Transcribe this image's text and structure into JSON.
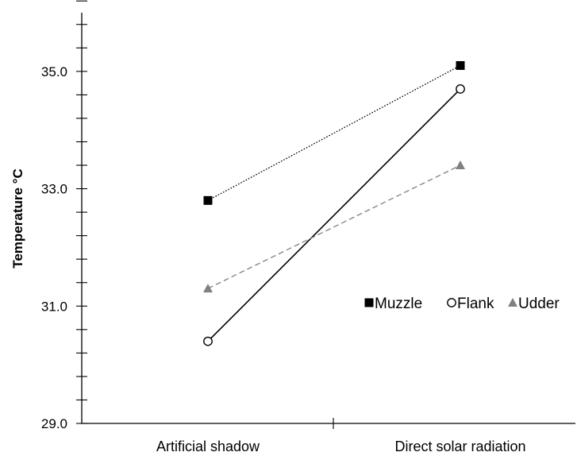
{
  "chart_data": {
    "type": "line",
    "title": "",
    "xlabel": "",
    "ylabel": "Temperature °C",
    "categories": [
      "Artificial shadow",
      "Direct solar radiation"
    ],
    "ylim": [
      29.0,
      36.0
    ],
    "y_tick_labels": [
      "29.0",
      "31.0",
      "33.0",
      "35.0"
    ],
    "y_major_ticks": [
      29.0,
      31.0,
      33.0,
      35.0
    ],
    "y_minor_step": 0.4,
    "grid": false,
    "legend_position": "right",
    "series": [
      {
        "name": "Muzzle",
        "values": [
          32.8,
          35.1
        ],
        "marker": "square-filled",
        "line": "dotted",
        "color": "#000000"
      },
      {
        "name": "Flank",
        "values": [
          30.4,
          34.7
        ],
        "marker": "circle-open",
        "line": "solid",
        "color": "#000000"
      },
      {
        "name": "Udder",
        "values": [
          31.3,
          33.4
        ],
        "marker": "triangle-filled",
        "line": "dashed",
        "color": "#808080"
      }
    ]
  }
}
